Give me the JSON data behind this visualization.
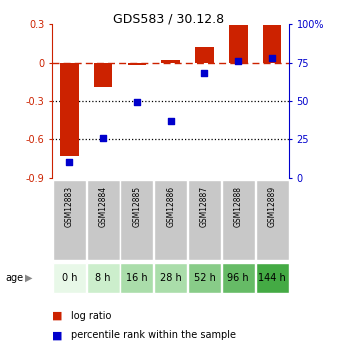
{
  "title": "GDS583 / 30.12.8",
  "samples": [
    "GSM12883",
    "GSM12884",
    "GSM12885",
    "GSM12886",
    "GSM12887",
    "GSM12888",
    "GSM12889"
  ],
  "ages": [
    "0 h",
    "8 h",
    "16 h",
    "28 h",
    "52 h",
    "96 h",
    "144 h"
  ],
  "log_ratio": [
    -0.73,
    -0.19,
    -0.02,
    0.02,
    0.12,
    0.29,
    0.29
  ],
  "percentile_rank": [
    10,
    26,
    49,
    37,
    68,
    76,
    78
  ],
  "bar_color": "#cc2200",
  "dot_color": "#0000cc",
  "ylim_left": [
    -0.9,
    0.3
  ],
  "ylim_right": [
    0,
    100
  ],
  "yticks_left": [
    -0.9,
    -0.6,
    -0.3,
    0.0,
    0.3
  ],
  "ytick_labels_left": [
    "-0.9",
    "-0.6",
    "-0.3",
    "0",
    "0.3"
  ],
  "yticks_right": [
    0,
    25,
    50,
    75,
    100
  ],
  "ytick_labels_right": [
    "0",
    "25",
    "50",
    "75",
    "100%"
  ],
  "dotted_lines": [
    -0.3,
    -0.6
  ],
  "zero_line_color": "#cc2200",
  "bg_color": "#ffffff",
  "age_bg_colors": [
    "#e8f8e8",
    "#cceecc",
    "#aaddaa",
    "#aaddaa",
    "#88cc88",
    "#66bb66",
    "#44aa44"
  ],
  "sample_cell_color": "#c8c8c8",
  "sample_border_color": "#ffffff",
  "legend_log_ratio_color": "#cc2200",
  "legend_percentile_color": "#0000cc"
}
